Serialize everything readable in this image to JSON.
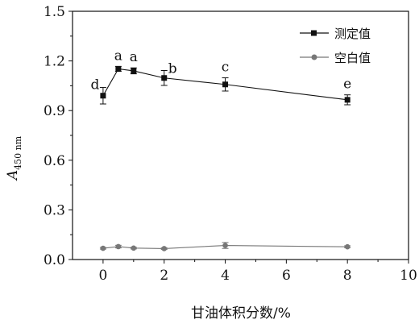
{
  "chart_data": {
    "type": "line",
    "xlabel": "甘油体积分数/%",
    "ylabel": {
      "main": "A",
      "sub": "450 nm"
    },
    "xlim": [
      -1,
      10
    ],
    "ylim": [
      0,
      1.5
    ],
    "xticks": [
      0,
      2,
      4,
      6,
      8,
      10
    ],
    "yticks": [
      "0.0",
      "0.3",
      "0.6",
      "0.9",
      "1.2",
      "1.5"
    ],
    "legend_position": "top-right",
    "grid": false,
    "series": [
      {
        "name": "测定值",
        "color": "#111111",
        "marker": "square",
        "x": [
          0,
          0.5,
          1,
          2,
          4,
          8
        ],
        "y": [
          0.99,
          1.152,
          1.14,
          1.097,
          1.058,
          0.965
        ],
        "err": [
          0.05,
          0.015,
          0.018,
          0.045,
          0.04,
          0.03
        ],
        "labels": [
          "d",
          "a",
          "a",
          "b",
          "c",
          "e"
        ]
      },
      {
        "name": "空白值",
        "color": "#777777",
        "marker": "circle",
        "x": [
          0,
          0.5,
          1,
          2,
          4,
          8
        ],
        "y": [
          0.068,
          0.078,
          0.069,
          0.066,
          0.085,
          0.077
        ],
        "err": [
          0.005,
          0.008,
          0.005,
          0.005,
          0.018,
          0.006
        ]
      }
    ]
  }
}
